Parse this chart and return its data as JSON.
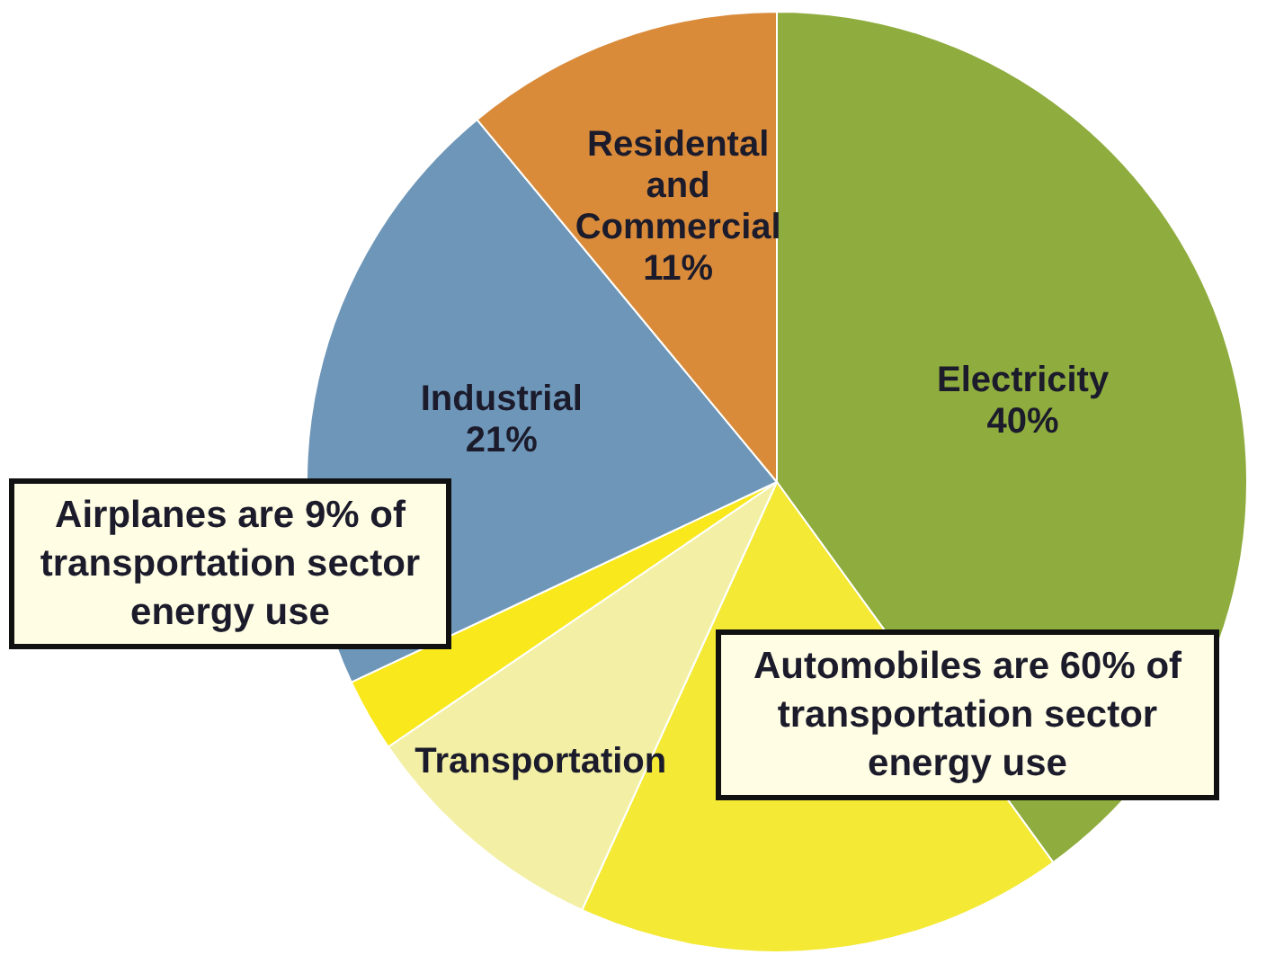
{
  "chart_data": {
    "type": "pie",
    "categories": [
      "Electricity",
      null,
      "Transportation",
      null,
      "Industrial",
      "Residental and Commercial"
    ],
    "values": [
      40,
      16.8,
      8.68,
      2.52,
      21,
      11
    ],
    "value_labels": [
      "40%",
      null,
      null,
      null,
      "21%",
      "11%"
    ],
    "colors": [
      "#8fac3e",
      "#f4e934",
      "#f3f0a6",
      "#f8e81c",
      "#6e96b8",
      "#d98b3a"
    ],
    "legend": false,
    "annotations": [
      "Airplanes are 9% of transportation sector energy use",
      "Automobiles are 60% of transportation sector energy use"
    ]
  }
}
